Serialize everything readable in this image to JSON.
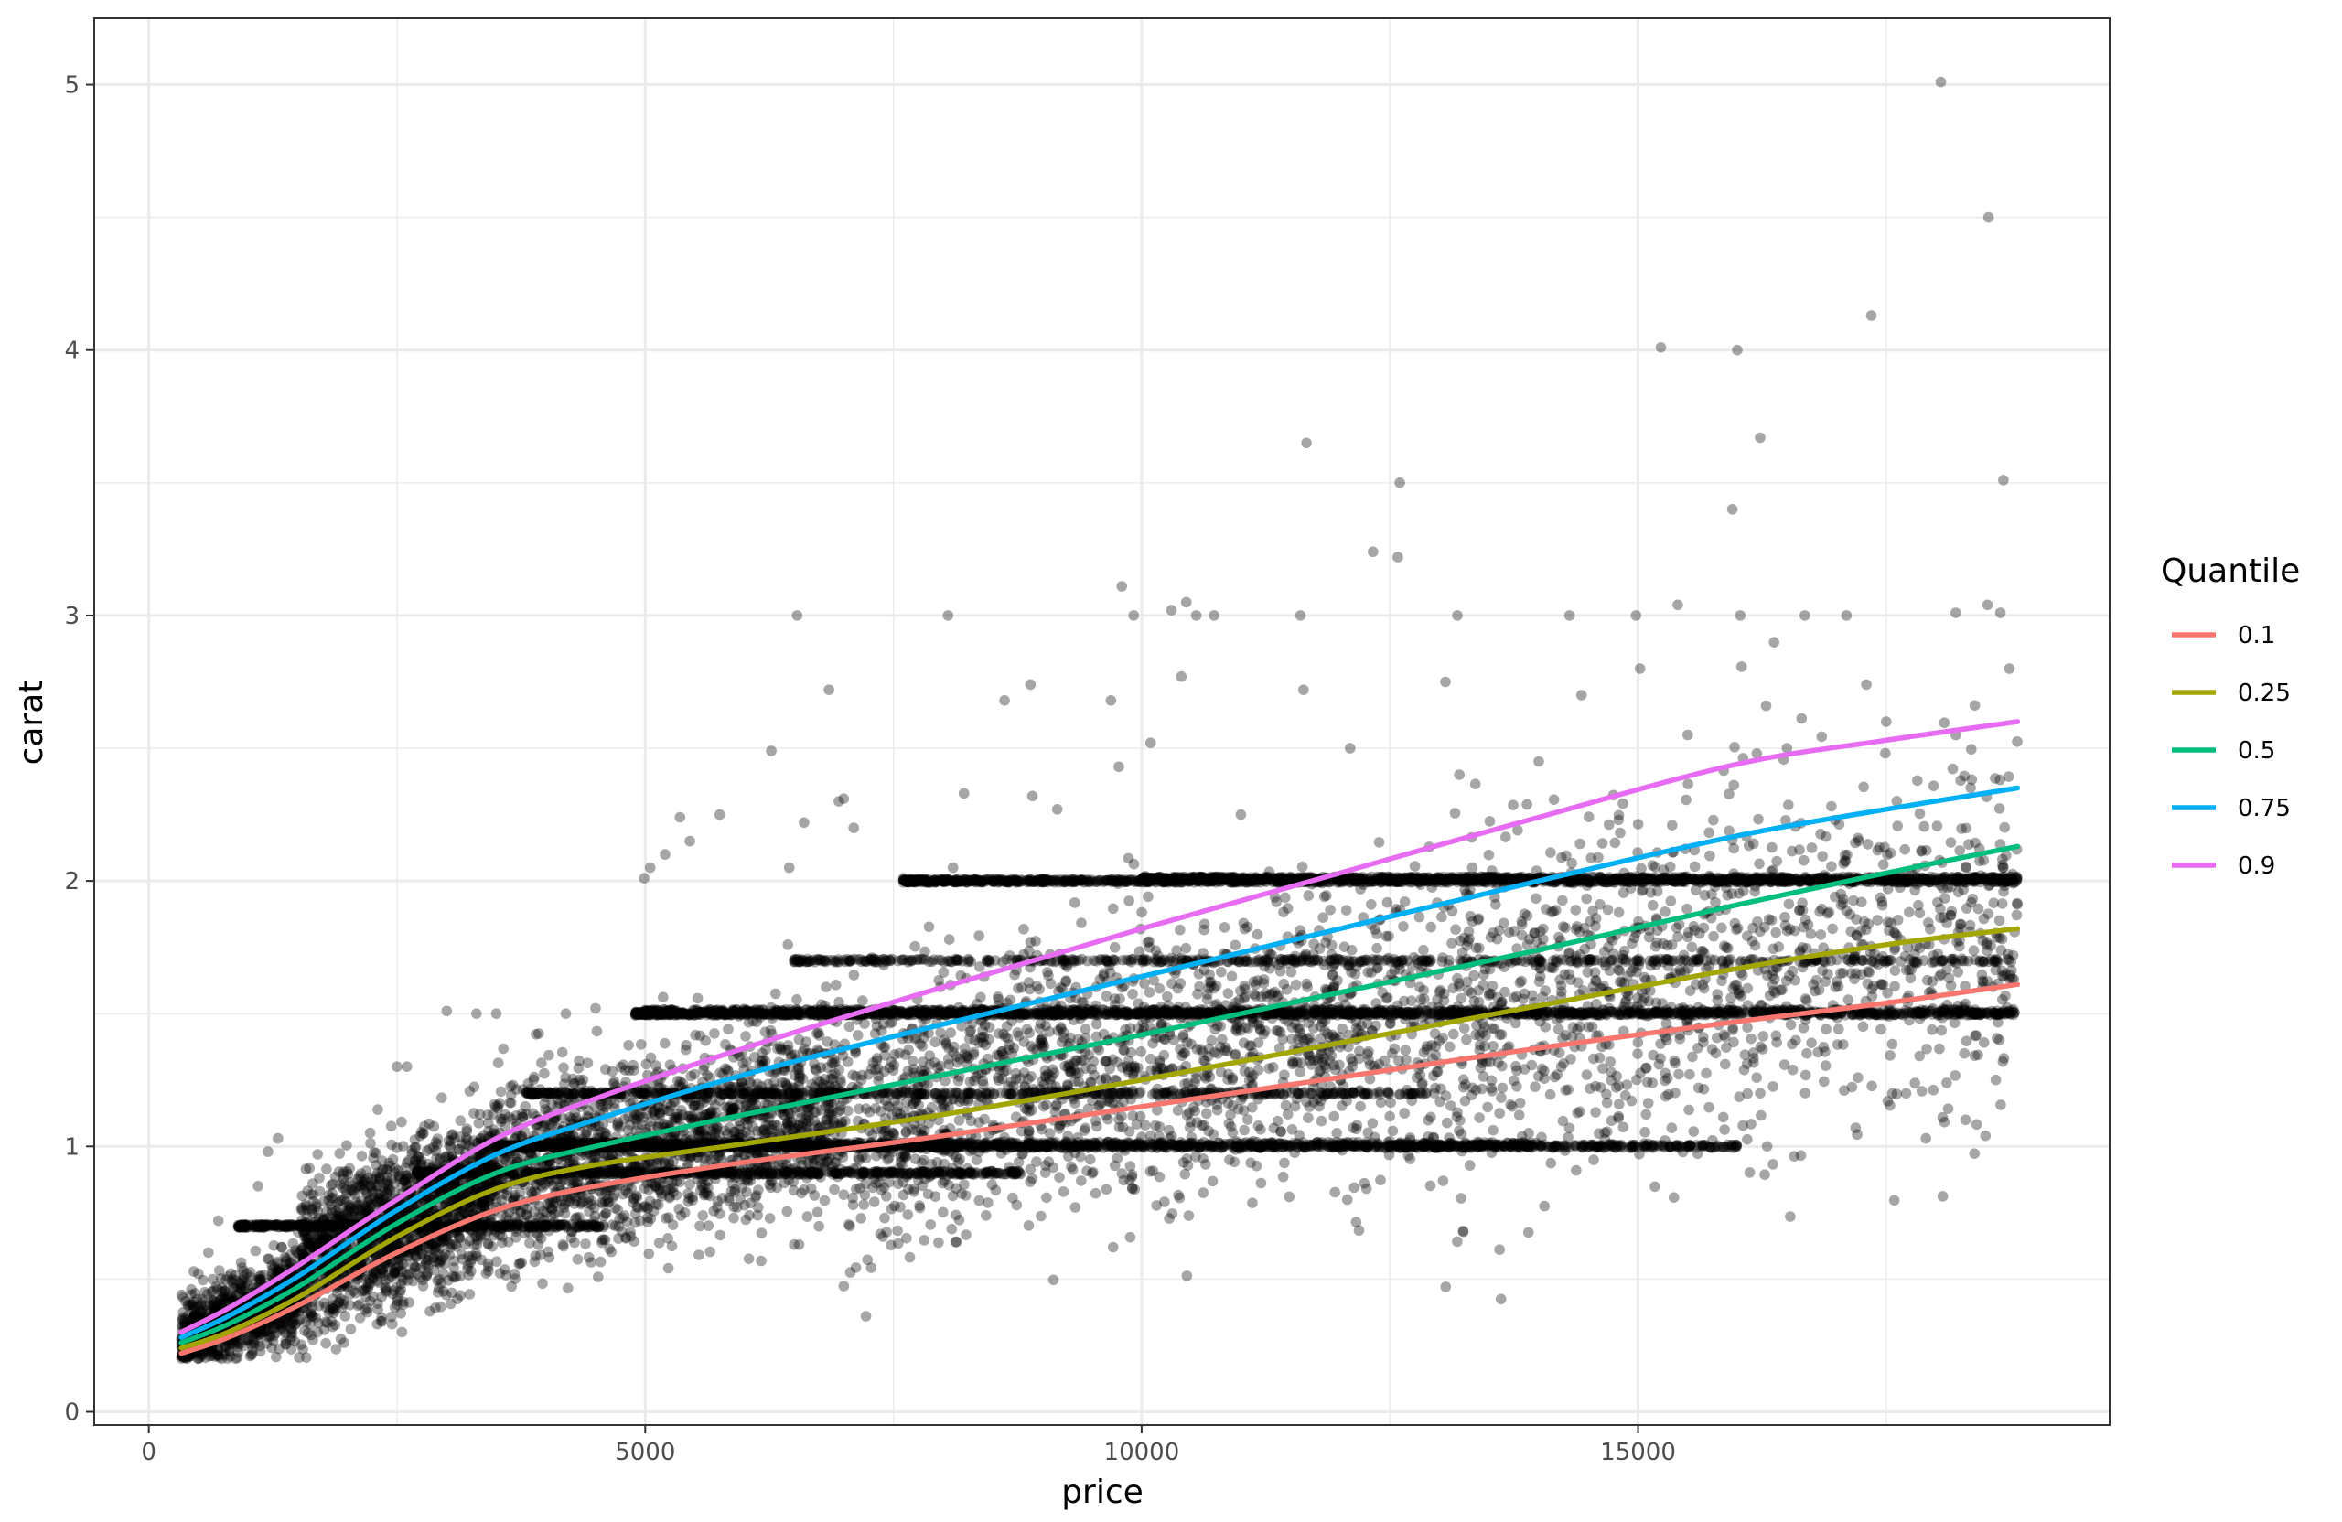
{
  "chart_data": {
    "type": "scatter",
    "title": "",
    "xlabel": "price",
    "ylabel": "carat",
    "xlim": [
      -550,
      19750
    ],
    "ylim": [
      -0.05,
      5.25
    ],
    "x_ticks": [
      0,
      5000,
      10000,
      15000
    ],
    "x_tick_labels": [
      "0",
      "5000",
      "10000",
      "15000"
    ],
    "y_ticks": [
      0,
      1,
      2,
      3,
      4,
      5
    ],
    "y_tick_labels": [
      "0",
      "1",
      "2",
      "3",
      "4",
      "5"
    ],
    "grid": true,
    "legend": {
      "title": "Quantile",
      "position": "right",
      "entries": [
        "0.1",
        "0.25",
        "0.5",
        "0.75",
        "0.9"
      ]
    },
    "points_color": "#000000",
    "points_opacity": 0.35,
    "points": [
      [
        18050,
        5.01
      ],
      [
        18530,
        4.5
      ],
      [
        17350,
        4.13
      ],
      [
        15230,
        4.01
      ],
      [
        16000,
        4.0
      ],
      [
        16230,
        3.67
      ],
      [
        11660,
        3.65
      ],
      [
        18680,
        3.51
      ],
      [
        12600,
        3.5
      ],
      [
        15950,
        3.4
      ],
      [
        12330,
        3.24
      ],
      [
        12580,
        3.22
      ],
      [
        9800,
        3.11
      ],
      [
        10450,
        3.05
      ],
      [
        15400,
        3.04
      ],
      [
        10300,
        3.02
      ],
      [
        18520,
        3.04
      ],
      [
        6530,
        3.0
      ],
      [
        8050,
        3.0
      ],
      [
        9920,
        3.0
      ],
      [
        10550,
        3.0
      ],
      [
        10730,
        3.0
      ],
      [
        11600,
        3.0
      ],
      [
        13180,
        3.0
      ],
      [
        14310,
        3.0
      ],
      [
        14980,
        3.0
      ],
      [
        16030,
        3.0
      ],
      [
        16680,
        3.0
      ],
      [
        17100,
        3.0
      ],
      [
        18200,
        3.01
      ],
      [
        18650,
        3.01
      ],
      [
        15020,
        2.8
      ],
      [
        18740,
        2.8
      ],
      [
        10400,
        2.77
      ],
      [
        13060,
        2.75
      ],
      [
        11630,
        2.72
      ],
      [
        6850,
        2.72
      ],
      [
        9690,
        2.68
      ],
      [
        8620,
        2.68
      ],
      [
        16290,
        2.66
      ],
      [
        17300,
        2.74
      ],
      [
        8880,
        2.74
      ],
      [
        14430,
        2.7
      ],
      [
        10090,
        2.52
      ],
      [
        6270,
        2.49
      ],
      [
        9770,
        2.43
      ],
      [
        5350,
        2.24
      ],
      [
        5750,
        2.25
      ],
      [
        6600,
        2.22
      ],
      [
        8210,
        2.33
      ],
      [
        8900,
        2.32
      ],
      [
        9150,
        2.27
      ],
      [
        7000,
        2.31
      ],
      [
        6950,
        2.3
      ],
      [
        4990,
        2.01
      ],
      [
        5050,
        2.05
      ],
      [
        5200,
        2.1
      ],
      [
        5450,
        2.15
      ],
      [
        6450,
        2.05
      ],
      [
        7100,
        2.2
      ],
      [
        7600,
        2.01
      ],
      [
        8100,
        2.05
      ],
      [
        8500,
        2.0
      ],
      [
        11000,
        2.25
      ],
      [
        12100,
        2.5
      ],
      [
        13200,
        2.4
      ],
      [
        14000,
        2.45
      ],
      [
        15500,
        2.55
      ],
      [
        16500,
        2.5
      ],
      [
        17500,
        2.6
      ],
      [
        18200,
        2.55
      ],
      [
        12800,
        1.6
      ],
      [
        14500,
        1.45
      ],
      [
        16700,
        1.35
      ],
      [
        17700,
        1.2
      ],
      [
        18300,
        1.1
      ],
      [
        18500,
        1.04
      ],
      [
        17900,
        1.03
      ],
      [
        16300,
        1.0
      ],
      [
        15100,
        1.01
      ],
      [
        13900,
        1.05
      ],
      [
        12500,
        1.02
      ],
      [
        11400,
        1.01
      ],
      [
        4700,
        0.7
      ],
      [
        4950,
        0.72
      ],
      [
        5550,
        0.7
      ],
      [
        5400,
        0.75
      ],
      [
        6500,
        0.63
      ],
      [
        6550,
        0.63
      ],
      [
        7850,
        0.82
      ],
      [
        3300,
        1.5
      ],
      [
        3500,
        1.5
      ],
      [
        4200,
        1.5
      ],
      [
        4500,
        1.52
      ],
      [
        3000,
        1.51
      ],
      [
        2600,
        1.3
      ],
      [
        2500,
        1.3
      ],
      [
        1300,
        1.03
      ],
      [
        1200,
        0.98
      ],
      [
        1700,
        0.97
      ],
      [
        1100,
        0.85
      ],
      [
        700,
        0.72
      ],
      [
        600,
        0.6
      ],
      [
        500,
        0.52
      ],
      [
        2450,
        0.33
      ],
      [
        2350,
        0.34
      ],
      [
        2300,
        0.33
      ],
      [
        2550,
        0.3
      ],
      [
        1850,
        0.32
      ],
      [
        1700,
        0.3
      ]
    ],
    "dense_regions": [
      {
        "x_range": [
          326,
          1500
        ],
        "y_center_start": 0.27,
        "y_center_end": 0.45,
        "spread": 0.08,
        "count": 900
      },
      {
        "x_range": [
          1500,
          3500
        ],
        "y_center_start": 0.55,
        "y_center_end": 0.85,
        "spread": 0.14,
        "count": 1700
      },
      {
        "x_range": [
          3500,
          7000
        ],
        "y_center_start": 0.9,
        "y_center_end": 1.15,
        "spread": 0.17,
        "count": 1700
      },
      {
        "x_range": [
          7000,
          12000
        ],
        "y_center_start": 1.1,
        "y_center_end": 1.45,
        "spread": 0.25,
        "count": 1400
      },
      {
        "x_range": [
          12000,
          18823
        ],
        "y_center_start": 1.4,
        "y_center_end": 1.85,
        "spread": 0.32,
        "count": 1400
      }
    ],
    "horizontal_bands": [
      {
        "y": 0.7,
        "x_range": [
          900,
          4600
        ],
        "count": 500
      },
      {
        "y": 0.9,
        "x_range": [
          2700,
          8800
        ],
        "count": 600
      },
      {
        "y": 1.0,
        "x_range": [
          3500,
          16000
        ],
        "count": 1300
      },
      {
        "y": 1.01,
        "x_range": [
          4000,
          14000
        ],
        "count": 600
      },
      {
        "y": 1.2,
        "x_range": [
          3800,
          13000
        ],
        "count": 500
      },
      {
        "y": 1.5,
        "x_range": [
          4900,
          18800
        ],
        "count": 1400
      },
      {
        "y": 1.51,
        "x_range": [
          5000,
          18800
        ],
        "count": 600
      },
      {
        "y": 1.7,
        "x_range": [
          6500,
          18800
        ],
        "count": 500
      },
      {
        "y": 2.0,
        "x_range": [
          7600,
          18823
        ],
        "count": 1200
      },
      {
        "y": 2.01,
        "x_range": [
          10000,
          18823
        ],
        "count": 800
      }
    ],
    "series": [
      {
        "name": "0.1",
        "color": "#F8766D",
        "x": [
          326,
          800,
          1500,
          2500,
          3500,
          4500,
          6000,
          8000,
          10000,
          12000,
          14000,
          16000,
          17500,
          18823
        ],
        "y": [
          0.22,
          0.28,
          0.4,
          0.6,
          0.76,
          0.85,
          0.94,
          1.04,
          1.15,
          1.26,
          1.37,
          1.47,
          1.54,
          1.61
        ]
      },
      {
        "name": "0.25",
        "color": "#A3A500",
        "x": [
          326,
          800,
          1500,
          2500,
          3500,
          4500,
          6000,
          8000,
          10000,
          12000,
          14000,
          16000,
          17500,
          18823
        ],
        "y": [
          0.24,
          0.3,
          0.43,
          0.66,
          0.84,
          0.93,
          1.01,
          1.12,
          1.25,
          1.39,
          1.53,
          1.67,
          1.76,
          1.82
        ]
      },
      {
        "name": "0.5",
        "color": "#00BF7D",
        "x": [
          326,
          800,
          1500,
          2500,
          3500,
          4500,
          6000,
          8000,
          10000,
          12000,
          14000,
          16000,
          17500,
          18823
        ],
        "y": [
          0.26,
          0.33,
          0.47,
          0.71,
          0.9,
          1.0,
          1.12,
          1.27,
          1.42,
          1.58,
          1.74,
          1.91,
          2.03,
          2.13
        ]
      },
      {
        "name": "0.75",
        "color": "#00B0F6",
        "x": [
          326,
          800,
          1500,
          2500,
          3500,
          4500,
          6000,
          8000,
          10000,
          12000,
          14000,
          16000,
          17500,
          18823
        ],
        "y": [
          0.28,
          0.36,
          0.51,
          0.76,
          0.97,
          1.1,
          1.27,
          1.46,
          1.64,
          1.82,
          2.0,
          2.17,
          2.27,
          2.35
        ]
      },
      {
        "name": "0.9",
        "color": "#E76BF3",
        "x": [
          326,
          800,
          1500,
          2500,
          3500,
          4500,
          6000,
          8000,
          10000,
          12000,
          14000,
          16000,
          17500,
          18823
        ],
        "y": [
          0.3,
          0.39,
          0.55,
          0.8,
          1.03,
          1.18,
          1.37,
          1.6,
          1.82,
          2.03,
          2.24,
          2.44,
          2.53,
          2.6
        ]
      }
    ]
  }
}
